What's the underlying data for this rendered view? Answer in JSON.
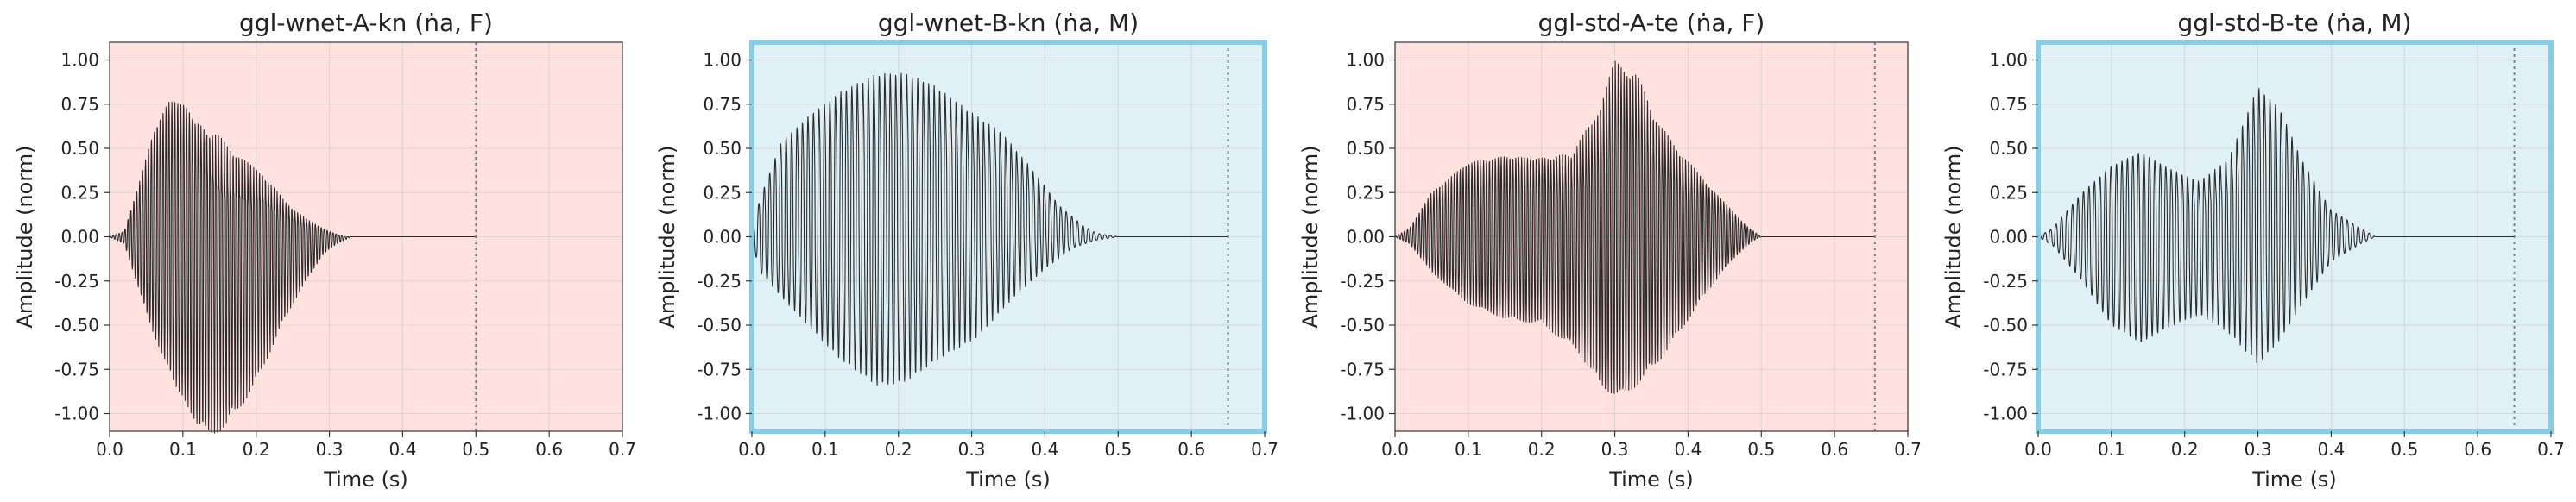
{
  "colors": {
    "female_bg": "#ffe2e0",
    "male_bg": "#dff0f7",
    "male_border": "#87cde6",
    "waveform": "#2a2a2a",
    "grid": "#cfcfcf",
    "end_marker": "#808080"
  },
  "chart_data": [
    {
      "type": "line",
      "title": "ggl-wnet-A-kn (ṅa, F)",
      "xlabel": "Time (s)",
      "ylabel": "Amplitude (norm)",
      "xlim": [
        0.0,
        0.7
      ],
      "ylim": [
        -1.1,
        1.1
      ],
      "xticks": [
        "0.0",
        "0.1",
        "0.2",
        "0.3",
        "0.4",
        "0.5",
        "0.6",
        "0.7"
      ],
      "yticks": [
        "1.00",
        "0.75",
        "0.50",
        "0.25",
        "0.00",
        "-0.25",
        "-0.50",
        "-0.75",
        "-1.00"
      ],
      "background": "female",
      "highlighted": false,
      "grid": true,
      "end_marker": 0.5,
      "signal_end": 0.5,
      "envelope_pos": [
        [
          0.0,
          0.0
        ],
        [
          0.02,
          0.03
        ],
        [
          0.04,
          0.3
        ],
        [
          0.06,
          0.6
        ],
        [
          0.08,
          0.76
        ],
        [
          0.1,
          0.77
        ],
        [
          0.11,
          0.72
        ],
        [
          0.13,
          0.6
        ],
        [
          0.15,
          0.52
        ],
        [
          0.18,
          0.43
        ],
        [
          0.21,
          0.36
        ],
        [
          0.24,
          0.2
        ],
        [
          0.27,
          0.1
        ],
        [
          0.3,
          0.03
        ],
        [
          0.32,
          0.0
        ],
        [
          0.5,
          0.0
        ]
      ],
      "envelope_neg": [
        [
          0.0,
          0.0
        ],
        [
          0.02,
          -0.04
        ],
        [
          0.04,
          -0.3
        ],
        [
          0.06,
          -0.55
        ],
        [
          0.09,
          -0.85
        ],
        [
          0.12,
          -1.0
        ],
        [
          0.14,
          -0.97
        ],
        [
          0.17,
          -0.85
        ],
        [
          0.2,
          -0.72
        ],
        [
          0.23,
          -0.48
        ],
        [
          0.26,
          -0.28
        ],
        [
          0.29,
          -0.1
        ],
        [
          0.31,
          -0.04
        ],
        [
          0.33,
          0.0
        ],
        [
          0.5,
          0.0
        ]
      ],
      "inner_pos": [
        [
          0.1,
          0.0
        ],
        [
          0.13,
          0.3
        ],
        [
          0.15,
          0.35
        ],
        [
          0.2,
          0.15
        ],
        [
          0.25,
          0.05
        ],
        [
          0.3,
          0.0
        ]
      ],
      "inner_neg": [
        [
          0.1,
          0.0
        ],
        [
          0.13,
          -0.3
        ],
        [
          0.16,
          -0.4
        ],
        [
          0.2,
          -0.25
        ],
        [
          0.25,
          -0.08
        ],
        [
          0.3,
          0.0
        ]
      ],
      "period": 0.004
    },
    {
      "type": "line",
      "title": "ggl-wnet-B-kn (ṅa, M)",
      "xlabel": "Time (s)",
      "ylabel": "Amplitude (norm)",
      "xlim": [
        0.0,
        0.7
      ],
      "ylim": [
        -1.1,
        1.1
      ],
      "xticks": [
        "0.0",
        "0.1",
        "0.2",
        "0.3",
        "0.4",
        "0.5",
        "0.6",
        "0.7"
      ],
      "yticks": [
        "1.00",
        "0.75",
        "0.50",
        "0.25",
        "0.00",
        "-0.25",
        "-0.50",
        "-0.75",
        "-1.00"
      ],
      "background": "male",
      "highlighted": true,
      "grid": true,
      "end_marker": 0.65,
      "signal_end": 0.65,
      "envelope_pos": [
        [
          0.0,
          0.0
        ],
        [
          0.01,
          0.2
        ],
        [
          0.04,
          0.55
        ],
        [
          0.08,
          0.72
        ],
        [
          0.12,
          0.85
        ],
        [
          0.17,
          0.96
        ],
        [
          0.21,
          0.96
        ],
        [
          0.25,
          0.88
        ],
        [
          0.3,
          0.7
        ],
        [
          0.34,
          0.6
        ],
        [
          0.38,
          0.4
        ],
        [
          0.42,
          0.18
        ],
        [
          0.45,
          0.07
        ],
        [
          0.47,
          0.02
        ],
        [
          0.5,
          0.0
        ],
        [
          0.65,
          0.0
        ]
      ],
      "envelope_neg": [
        [
          0.0,
          0.0
        ],
        [
          0.01,
          -0.2
        ],
        [
          0.04,
          -0.32
        ],
        [
          0.08,
          -0.45
        ],
        [
          0.12,
          -0.6
        ],
        [
          0.17,
          -0.72
        ],
        [
          0.21,
          -0.68
        ],
        [
          0.26,
          -0.55
        ],
        [
          0.31,
          -0.45
        ],
        [
          0.35,
          -0.3
        ],
        [
          0.4,
          -0.15
        ],
        [
          0.44,
          -0.06
        ],
        [
          0.47,
          -0.02
        ],
        [
          0.5,
          0.0
        ],
        [
          0.65,
          0.0
        ]
      ],
      "inner_pos": [
        [
          0.02,
          0.0
        ],
        [
          0.08,
          0.1
        ],
        [
          0.2,
          0.2
        ],
        [
          0.3,
          0.3
        ],
        [
          0.38,
          0.15
        ],
        [
          0.44,
          0.0
        ]
      ],
      "inner_neg": [
        [
          0.02,
          0.0
        ],
        [
          0.08,
          -0.15
        ],
        [
          0.2,
          -0.3
        ],
        [
          0.3,
          -0.25
        ],
        [
          0.38,
          -0.1
        ],
        [
          0.44,
          0.0
        ]
      ],
      "period": 0.0075
    },
    {
      "type": "line",
      "title": "ggl-std-A-te (ṅa, F)",
      "xlabel": "Time (s)",
      "ylabel": "Amplitude (norm)",
      "xlim": [
        0.0,
        0.7
      ],
      "ylim": [
        -1.1,
        1.1
      ],
      "xticks": [
        "0.0",
        "0.1",
        "0.2",
        "0.3",
        "0.4",
        "0.5",
        "0.6",
        "0.7"
      ],
      "yticks": [
        "1.00",
        "0.75",
        "0.50",
        "0.25",
        "0.00",
        "-0.25",
        "-0.50",
        "-0.75",
        "-1.00"
      ],
      "background": "female",
      "highlighted": false,
      "grid": true,
      "end_marker": 0.655,
      "signal_end": 0.655,
      "envelope_pos": [
        [
          0.0,
          0.0
        ],
        [
          0.02,
          0.05
        ],
        [
          0.05,
          0.25
        ],
        [
          0.1,
          0.42
        ],
        [
          0.15,
          0.47
        ],
        [
          0.2,
          0.46
        ],
        [
          0.24,
          0.45
        ],
        [
          0.27,
          0.62
        ],
        [
          0.3,
          0.98
        ],
        [
          0.33,
          0.92
        ],
        [
          0.36,
          0.62
        ],
        [
          0.4,
          0.42
        ],
        [
          0.45,
          0.2
        ],
        [
          0.48,
          0.06
        ],
        [
          0.5,
          0.0
        ],
        [
          0.655,
          0.0
        ]
      ],
      "envelope_neg": [
        [
          0.0,
          0.0
        ],
        [
          0.02,
          -0.04
        ],
        [
          0.05,
          -0.2
        ],
        [
          0.1,
          -0.38
        ],
        [
          0.15,
          -0.44
        ],
        [
          0.2,
          -0.45
        ],
        [
          0.25,
          -0.55
        ],
        [
          0.28,
          -0.72
        ],
        [
          0.31,
          -0.78
        ],
        [
          0.34,
          -0.66
        ],
        [
          0.38,
          -0.5
        ],
        [
          0.42,
          -0.3
        ],
        [
          0.46,
          -0.12
        ],
        [
          0.49,
          -0.02
        ],
        [
          0.5,
          0.0
        ],
        [
          0.655,
          0.0
        ]
      ],
      "inner_pos": [
        [
          0.1,
          0.0
        ],
        [
          0.15,
          0.05
        ],
        [
          0.2,
          0.12
        ],
        [
          0.25,
          0.3
        ],
        [
          0.3,
          0.45
        ],
        [
          0.35,
          0.35
        ],
        [
          0.4,
          0.2
        ],
        [
          0.45,
          0.05
        ],
        [
          0.48,
          0.0
        ]
      ],
      "inner_neg": [
        [
          0.1,
          0.0
        ],
        [
          0.15,
          -0.06
        ],
        [
          0.2,
          -0.1
        ],
        [
          0.25,
          -0.22
        ],
        [
          0.3,
          -0.3
        ],
        [
          0.35,
          -0.3
        ],
        [
          0.4,
          -0.15
        ],
        [
          0.45,
          -0.04
        ],
        [
          0.48,
          0.0
        ]
      ],
      "period": 0.004
    },
    {
      "type": "line",
      "title": "ggl-std-B-te (ṅa, M)",
      "xlabel": "Time (s)",
      "ylabel": "Amplitude (norm)",
      "xlim": [
        0.0,
        0.7
      ],
      "ylim": [
        -1.1,
        1.1
      ],
      "xticks": [
        "0.0",
        "0.1",
        "0.2",
        "0.3",
        "0.4",
        "0.5",
        "0.6",
        "0.7"
      ],
      "yticks": [
        "1.00",
        "0.75",
        "0.50",
        "0.25",
        "0.00",
        "-0.25",
        "-0.50",
        "-0.75",
        "-1.00"
      ],
      "background": "male",
      "highlighted": true,
      "grid": true,
      "end_marker": 0.65,
      "signal_end": 0.65,
      "envelope_pos": [
        [
          0.0,
          0.0
        ],
        [
          0.02,
          0.05
        ],
        [
          0.06,
          0.25
        ],
        [
          0.1,
          0.4
        ],
        [
          0.14,
          0.48
        ],
        [
          0.18,
          0.4
        ],
        [
          0.22,
          0.32
        ],
        [
          0.26,
          0.45
        ],
        [
          0.3,
          0.88
        ],
        [
          0.33,
          0.75
        ],
        [
          0.36,
          0.45
        ],
        [
          0.4,
          0.15
        ],
        [
          0.44,
          0.05
        ],
        [
          0.46,
          0.0
        ],
        [
          0.65,
          0.0
        ]
      ],
      "envelope_neg": [
        [
          0.0,
          0.0
        ],
        [
          0.02,
          -0.05
        ],
        [
          0.06,
          -0.25
        ],
        [
          0.1,
          -0.5
        ],
        [
          0.14,
          -0.6
        ],
        [
          0.18,
          -0.48
        ],
        [
          0.22,
          -0.38
        ],
        [
          0.26,
          -0.45
        ],
        [
          0.3,
          -0.62
        ],
        [
          0.33,
          -0.52
        ],
        [
          0.36,
          -0.35
        ],
        [
          0.4,
          -0.14
        ],
        [
          0.44,
          -0.04
        ],
        [
          0.46,
          0.0
        ],
        [
          0.65,
          0.0
        ]
      ],
      "inner_pos": [
        [
          0.14,
          0.0
        ],
        [
          0.2,
          0.08
        ],
        [
          0.26,
          0.15
        ],
        [
          0.3,
          0.2
        ],
        [
          0.34,
          0.12
        ],
        [
          0.4,
          0.0
        ]
      ],
      "inner_neg": [
        [
          0.14,
          0.0
        ],
        [
          0.2,
          -0.1
        ],
        [
          0.26,
          -0.2
        ],
        [
          0.3,
          -0.22
        ],
        [
          0.34,
          -0.12
        ],
        [
          0.4,
          0.0
        ]
      ],
      "period": 0.0075
    }
  ]
}
